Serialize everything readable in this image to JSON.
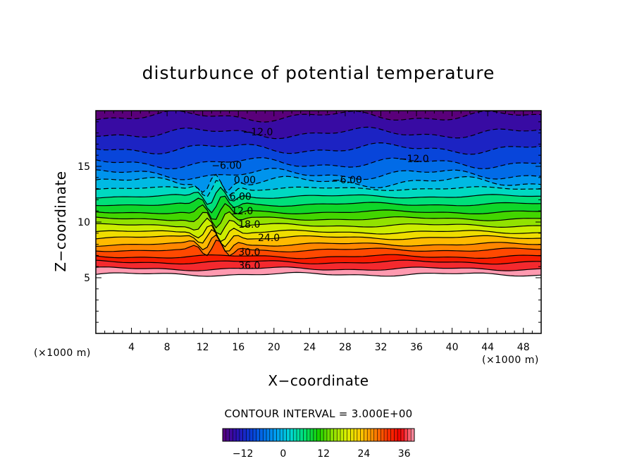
{
  "chart_data": {
    "type": "heatmap",
    "subtype": "filled-contour",
    "title": "disturbunce of potential temperature",
    "xlabel": "X−coordinate",
    "ylabel": "Z−coordinate",
    "x_unit": "(×1000 m)",
    "y_unit": "(×1000 m)",
    "xlim": [
      0,
      50
    ],
    "ylim": [
      0,
      20
    ],
    "x_ticks": [
      4,
      8,
      12,
      16,
      20,
      24,
      28,
      32,
      36,
      40,
      44,
      48
    ],
    "y_ticks": [
      5,
      10,
      15
    ],
    "contour_interval_text": "CONTOUR INTERVAL = 3.000E+00",
    "contour_interval": 3.0,
    "negative_contours": "dashed",
    "contour_labels": [
      {
        "text": "−12.0",
        "x": 16.5,
        "z": 18.1
      },
      {
        "text": "−12.0",
        "x": 34.0,
        "z": 15.7
      },
      {
        "text": "−6.00",
        "x": 13.0,
        "z": 15.1
      },
      {
        "text": "−6.00",
        "x": 26.5,
        "z": 13.8
      },
      {
        "text": "0.00",
        "x": 15.5,
        "z": 13.8
      },
      {
        "text": "6.00",
        "x": 15.0,
        "z": 12.3
      },
      {
        "text": "12.0",
        "x": 15.2,
        "z": 11.0
      },
      {
        "text": "18.0",
        "x": 16.0,
        "z": 9.8
      },
      {
        "text": "24.0",
        "x": 18.2,
        "z": 8.6
      },
      {
        "text": "30.0",
        "x": 16.0,
        "z": 7.3
      },
      {
        "text": "36.0",
        "x": 16.0,
        "z": 6.1
      }
    ],
    "colorbar": {
      "min": -18,
      "max": 39,
      "tick_values": [
        -12,
        0,
        12,
        24,
        36
      ],
      "tick_labels": [
        "−12",
        "0",
        "12",
        "24",
        "36"
      ],
      "colors": [
        "#5a007a",
        "#2c0fb2",
        "#0a3ad6",
        "#006ee8",
        "#00a5f0",
        "#00d8d0",
        "#00e070",
        "#18d000",
        "#8ae000",
        "#d8f000",
        "#ffd000",
        "#ff8a00",
        "#ff3800",
        "#f00000",
        "#ff9ab0"
      ]
    },
    "layers": [
      {
        "z_bottom": 5.3,
        "value": 39
      },
      {
        "z_bottom": 5.8,
        "value": 36
      },
      {
        "z_bottom": 6.4,
        "value": 33
      },
      {
        "z_bottom": 6.9,
        "value": 30
      },
      {
        "z_bottom": 7.5,
        "value": 27
      },
      {
        "z_bottom": 8.0,
        "value": 24
      },
      {
        "z_bottom": 8.6,
        "value": 21
      },
      {
        "z_bottom": 9.1,
        "value": 18
      },
      {
        "z_bottom": 9.7,
        "value": 15
      },
      {
        "z_bottom": 10.3,
        "value": 12
      },
      {
        "z_bottom": 10.9,
        "value": 9
      },
      {
        "z_bottom": 11.6,
        "value": 6
      },
      {
        "z_bottom": 12.3,
        "value": 3
      },
      {
        "z_bottom": 13.0,
        "value": 0
      },
      {
        "z_bottom": 13.6,
        "value": -3
      },
      {
        "z_bottom": 14.3,
        "value": -6
      },
      {
        "z_bottom": 15.3,
        "value": -9
      },
      {
        "z_bottom": 16.6,
        "value": -12
      },
      {
        "z_bottom": 18.0,
        "value": -15
      },
      {
        "z_bottom": 19.5,
        "value": -18
      }
    ],
    "below_data_region": {
      "z_top": 5.3,
      "fill": "#ffffff"
    }
  }
}
